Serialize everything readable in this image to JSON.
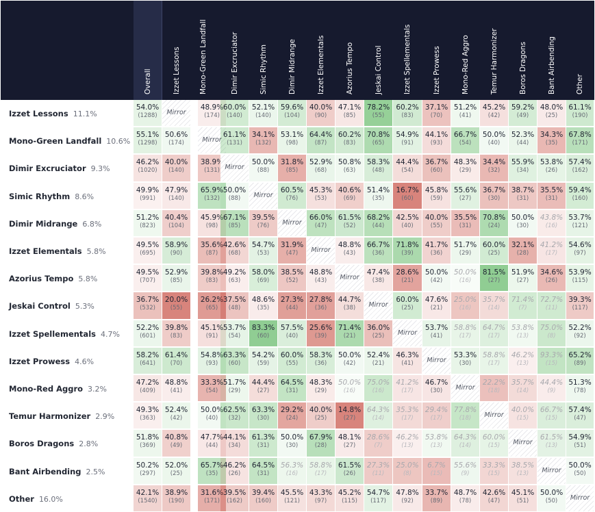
{
  "columns": [
    "Overall",
    "Izzet Lessons",
    "Mono-Green Landfall",
    "Dimir Excruciator",
    "Simic Rhythm",
    "Dimir Midrange",
    "Izzet Elementals",
    "Azorius Tempo",
    "Jeskai Control",
    "Izzet Spellementals",
    "Izzet Prowess",
    "Mono-Red Aggro",
    "Temur Harmonizer",
    "Boros Dragons",
    "Bant Airbending",
    "Other"
  ],
  "mirror_label": "Mirror",
  "colors": {
    "header_bg": "#161a2e",
    "overall_header_bg": "#262c48",
    "win": "#4caf50",
    "loss": "#c0392b"
  },
  "rows": [
    {
      "name": "Izzet Lessons",
      "share": "11.1%",
      "cells": [
        [
          "54.0%",
          "(1288)"
        ],
        null,
        [
          "48.9%",
          "(174)"
        ],
        [
          "60.0%",
          "(140)"
        ],
        [
          "52.1%",
          "(140)"
        ],
        [
          "59.6%",
          "(104)"
        ],
        [
          "40.0%",
          "(90)"
        ],
        [
          "47.1%",
          "(85)"
        ],
        [
          "78.2%",
          "(55)"
        ],
        [
          "60.2%",
          "(83)"
        ],
        [
          "37.1%",
          "(70)"
        ],
        [
          "51.2%",
          "(41)"
        ],
        [
          "45.2%",
          "(42)"
        ],
        [
          "59.2%",
          "(49)"
        ],
        [
          "48.0%",
          "(25)"
        ],
        [
          "61.1%",
          "(190)"
        ]
      ]
    },
    {
      "name": "Mono-Green Landfall",
      "share": "10.6%",
      "cells": [
        [
          "55.1%",
          "(1298)"
        ],
        [
          "50.6%",
          "(174)"
        ],
        null,
        [
          "61.1%",
          "(131)"
        ],
        [
          "34.1%",
          "(132)"
        ],
        [
          "53.1%",
          "(98)"
        ],
        [
          "64.4%",
          "(87)"
        ],
        [
          "60.2%",
          "(83)"
        ],
        [
          "70.8%",
          "(65)"
        ],
        [
          "54.9%",
          "(91)"
        ],
        [
          "44.1%",
          "(93)"
        ],
        [
          "66.7%",
          "(54)"
        ],
        [
          "50.0%",
          "(40)"
        ],
        [
          "52.3%",
          "(44)"
        ],
        [
          "34.3%",
          "(35)"
        ],
        [
          "67.8%",
          "(171)"
        ]
      ]
    },
    {
      "name": "Dimir Excruciator",
      "share": "9.3%",
      "cells": [
        [
          "46.2%",
          "(1020)"
        ],
        [
          "40.0%",
          "(140)"
        ],
        [
          "38.9%",
          "(131)"
        ],
        null,
        [
          "50.0%",
          "(88)"
        ],
        [
          "31.8%",
          "(85)"
        ],
        [
          "52.9%",
          "(68)"
        ],
        [
          "50.8%",
          "(63)"
        ],
        [
          "58.3%",
          "(48)"
        ],
        [
          "44.4%",
          "(54)"
        ],
        [
          "36.7%",
          "(60)"
        ],
        [
          "48.3%",
          "(29)"
        ],
        [
          "34.4%",
          "(32)"
        ],
        [
          "55.9%",
          "(34)"
        ],
        [
          "53.8%",
          "(26)"
        ],
        [
          "57.4%",
          "(162)"
        ]
      ]
    },
    {
      "name": "Simic Rhythm",
      "share": "8.6%",
      "cells": [
        [
          "49.9%",
          "(991)"
        ],
        [
          "47.9%",
          "(140)"
        ],
        [
          "65.9%",
          "(132)"
        ],
        [
          "50.0%",
          "(88)"
        ],
        null,
        [
          "60.5%",
          "(76)"
        ],
        [
          "45.3%",
          "(53)"
        ],
        [
          "40.6%",
          "(69)"
        ],
        [
          "51.4%",
          "(35)"
        ],
        [
          "16.7%",
          "(60)"
        ],
        [
          "45.8%",
          "(59)"
        ],
        [
          "55.6%",
          "(27)"
        ],
        [
          "36.7%",
          "(30)"
        ],
        [
          "38.7%",
          "(31)"
        ],
        [
          "35.5%",
          "(31)"
        ],
        [
          "59.4%",
          "(160)"
        ]
      ]
    },
    {
      "name": "Dimir Midrange",
      "share": "6.8%",
      "cells": [
        [
          "51.2%",
          "(823)"
        ],
        [
          "40.4%",
          "(104)"
        ],
        [
          "45.9%",
          "(98)"
        ],
        [
          "67.1%",
          "(85)"
        ],
        [
          "39.5%",
          "(76)"
        ],
        null,
        [
          "66.0%",
          "(47)"
        ],
        [
          "61.5%",
          "(52)"
        ],
        [
          "68.2%",
          "(44)"
        ],
        [
          "42.5%",
          "(40)"
        ],
        [
          "40.0%",
          "(55)"
        ],
        [
          "35.5%",
          "(31)"
        ],
        [
          "70.8%",
          "(24)"
        ],
        [
          "50.0%",
          "(30)"
        ],
        [
          "43.8%",
          "(16)"
        ],
        [
          "53.7%",
          "(121)"
        ]
      ]
    },
    {
      "name": "Izzet Elementals",
      "share": "5.8%",
      "cells": [
        [
          "49.5%",
          "(695)"
        ],
        [
          "58.9%",
          "(90)"
        ],
        [
          "35.6%",
          "(87)"
        ],
        [
          "42.6%",
          "(68)"
        ],
        [
          "54.7%",
          "(53)"
        ],
        [
          "31.9%",
          "(47)"
        ],
        null,
        [
          "48.8%",
          "(43)"
        ],
        [
          "66.7%",
          "(36)"
        ],
        [
          "71.8%",
          "(39)"
        ],
        [
          "41.7%",
          "(36)"
        ],
        [
          "51.7%",
          "(29)"
        ],
        [
          "60.0%",
          "(25)"
        ],
        [
          "32.1%",
          "(28)"
        ],
        [
          "41.2%",
          "(17)"
        ],
        [
          "54.6%",
          "(97)"
        ]
      ]
    },
    {
      "name": "Azorius Tempo",
      "share": "5.8%",
      "cells": [
        [
          "49.5%",
          "(707)"
        ],
        [
          "52.9%",
          "(85)"
        ],
        [
          "39.8%",
          "(83)"
        ],
        [
          "49.2%",
          "(63)"
        ],
        [
          "58.0%",
          "(69)"
        ],
        [
          "38.5%",
          "(52)"
        ],
        [
          "48.8%",
          "(43)"
        ],
        null,
        [
          "47.4%",
          "(38)"
        ],
        [
          "28.6%",
          "(21)"
        ],
        [
          "50.0%",
          "(42)"
        ],
        [
          "50.0%",
          "(16)"
        ],
        [
          "81.5%",
          "(27)"
        ],
        [
          "51.9%",
          "(27)"
        ],
        [
          "34.6%",
          "(26)"
        ],
        [
          "53.9%",
          "(115)"
        ]
      ]
    },
    {
      "name": "Jeskai Control",
      "share": "5.3%",
      "cells": [
        [
          "36.7%",
          "(532)"
        ],
        [
          "20.0%",
          "(55)"
        ],
        [
          "26.2%",
          "(65)"
        ],
        [
          "37.5%",
          "(48)"
        ],
        [
          "48.6%",
          "(35)"
        ],
        [
          "27.3%",
          "(44)"
        ],
        [
          "27.8%",
          "(36)"
        ],
        [
          "44.7%",
          "(38)"
        ],
        null,
        [
          "60.0%",
          "(25)"
        ],
        [
          "47.6%",
          "(21)"
        ],
        [
          "25.0%",
          "(16)"
        ],
        [
          "35.7%",
          "(14)"
        ],
        [
          "71.4%",
          "(7)"
        ],
        [
          "72.7%",
          "(11)"
        ],
        [
          "39.3%",
          "(117)"
        ]
      ]
    },
    {
      "name": "Izzet Spellementals",
      "share": "4.7%",
      "cells": [
        [
          "52.2%",
          "(601)"
        ],
        [
          "39.8%",
          "(83)"
        ],
        [
          "45.1%",
          "(91)"
        ],
        [
          "53.7%",
          "(54)"
        ],
        [
          "83.3%",
          "(60)"
        ],
        [
          "57.5%",
          "(40)"
        ],
        [
          "25.6%",
          "(39)"
        ],
        [
          "71.4%",
          "(21)"
        ],
        [
          "36.0%",
          "(25)"
        ],
        null,
        [
          "53.7%",
          "(41)"
        ],
        [
          "58.8%",
          "(17)"
        ],
        [
          "64.7%",
          "(17)"
        ],
        [
          "53.8%",
          "(13)"
        ],
        [
          "75.0%",
          "(8)"
        ],
        [
          "52.2%",
          "(92)"
        ]
      ]
    },
    {
      "name": "Izzet Prowess",
      "share": "4.6%",
      "cells": [
        [
          "58.2%",
          "(641)"
        ],
        [
          "61.4%",
          "(70)"
        ],
        [
          "54.8%",
          "(93)"
        ],
        [
          "63.3%",
          "(60)"
        ],
        [
          "54.2%",
          "(59)"
        ],
        [
          "60.0%",
          "(55)"
        ],
        [
          "58.3%",
          "(36)"
        ],
        [
          "50.0%",
          "(42)"
        ],
        [
          "52.4%",
          "(21)"
        ],
        [
          "46.3%",
          "(41)"
        ],
        null,
        [
          "53.3%",
          "(30)"
        ],
        [
          "58.8%",
          "(17)"
        ],
        [
          "46.2%",
          "(13)"
        ],
        [
          "93.3%",
          "(15)"
        ],
        [
          "65.2%",
          "(89)"
        ]
      ]
    },
    {
      "name": "Mono-Red Aggro",
      "share": "3.2%",
      "cells": [
        [
          "47.2%",
          "(409)"
        ],
        [
          "48.8%",
          "(41)"
        ],
        [
          "33.3%",
          "(54)"
        ],
        [
          "51.7%",
          "(29)"
        ],
        [
          "44.4%",
          "(27)"
        ],
        [
          "64.5%",
          "(31)"
        ],
        [
          "48.3%",
          "(29)"
        ],
        [
          "50.0%",
          "(16)"
        ],
        [
          "75.0%",
          "(16)"
        ],
        [
          "41.2%",
          "(17)"
        ],
        [
          "46.7%",
          "(30)"
        ],
        null,
        [
          "22.2%",
          "(18)"
        ],
        [
          "35.7%",
          "(14)"
        ],
        [
          "44.4%",
          "(9)"
        ],
        [
          "51.3%",
          "(78)"
        ]
      ]
    },
    {
      "name": "Temur Harmonizer",
      "share": "2.9%",
      "cells": [
        [
          "49.3%",
          "(363)"
        ],
        [
          "52.4%",
          "(42)"
        ],
        [
          "50.0%",
          "(40)"
        ],
        [
          "62.5%",
          "(32)"
        ],
        [
          "63.3%",
          "(30)"
        ],
        [
          "29.2%",
          "(24)"
        ],
        [
          "40.0%",
          "(25)"
        ],
        [
          "14.8%",
          "(27)"
        ],
        [
          "64.3%",
          "(14)"
        ],
        [
          "35.3%",
          "(17)"
        ],
        [
          "29.4%",
          "(17)"
        ],
        [
          "77.8%",
          "(18)"
        ],
        null,
        [
          "40.0%",
          "(15)"
        ],
        [
          "66.7%",
          "(15)"
        ],
        [
          "57.4%",
          "(47)"
        ]
      ]
    },
    {
      "name": "Boros Dragons",
      "share": "2.8%",
      "cells": [
        [
          "51.8%",
          "(369)"
        ],
        [
          "40.8%",
          "(49)"
        ],
        [
          "47.7%",
          "(44)"
        ],
        [
          "44.1%",
          "(34)"
        ],
        [
          "61.3%",
          "(31)"
        ],
        [
          "50.0%",
          "(30)"
        ],
        [
          "67.9%",
          "(28)"
        ],
        [
          "48.1%",
          "(27)"
        ],
        [
          "28.6%",
          "(7)"
        ],
        [
          "46.2%",
          "(13)"
        ],
        [
          "53.8%",
          "(13)"
        ],
        [
          "64.3%",
          "(14)"
        ],
        [
          "60.0%",
          "(15)"
        ],
        null,
        [
          "61.5%",
          "(13)"
        ],
        [
          "54.9%",
          "(51)"
        ]
      ]
    },
    {
      "name": "Bant Airbending",
      "share": "2.5%",
      "cells": [
        [
          "50.2%",
          "(297)"
        ],
        [
          "52.0%",
          "(25)"
        ],
        [
          "65.7%",
          "(35)"
        ],
        [
          "46.2%",
          "(26)"
        ],
        [
          "64.5%",
          "(31)"
        ],
        [
          "56.3%",
          "(16)"
        ],
        [
          "58.8%",
          "(17)"
        ],
        [
          "61.5%",
          "(26)"
        ],
        [
          "27.3%",
          "(11)"
        ],
        [
          "25.0%",
          "(8)"
        ],
        [
          "6.7%",
          "(15)"
        ],
        [
          "55.6%",
          "(9)"
        ],
        [
          "33.3%",
          "(15)"
        ],
        [
          "38.5%",
          "(13)"
        ],
        null,
        [
          "50.0%",
          "(50)"
        ]
      ]
    },
    {
      "name": "Other",
      "share": "16.0%",
      "cells": [
        [
          "42.1%",
          "(1540)"
        ],
        [
          "38.9%",
          "(190)"
        ],
        [
          "31.6%",
          "(171)"
        ],
        [
          "39.5%",
          "(162)"
        ],
        [
          "39.4%",
          "(160)"
        ],
        [
          "45.5%",
          "(121)"
        ],
        [
          "43.3%",
          "(97)"
        ],
        [
          "45.2%",
          "(115)"
        ],
        [
          "54.7%",
          "(117)"
        ],
        [
          "47.8%",
          "(92)"
        ],
        [
          "33.7%",
          "(89)"
        ],
        [
          "48.7%",
          "(78)"
        ],
        [
          "42.6%",
          "(47)"
        ],
        [
          "45.1%",
          "(51)"
        ],
        [
          "50.0%",
          "(50)"
        ],
        null
      ]
    }
  ],
  "chart_data": {
    "type": "heatmap",
    "x": [
      "Overall",
      "Izzet Lessons",
      "Mono-Green Landfall",
      "Dimir Excruciator",
      "Simic Rhythm",
      "Dimir Midrange",
      "Izzet Elementals",
      "Azorius Tempo",
      "Jeskai Control",
      "Izzet Spellementals",
      "Izzet Prowess",
      "Mono-Red Aggro",
      "Temur Harmonizer",
      "Boros Dragons",
      "Bant Airbending",
      "Other"
    ],
    "y": [
      "Izzet Lessons",
      "Mono-Green Landfall",
      "Dimir Excruciator",
      "Simic Rhythm",
      "Dimir Midrange",
      "Izzet Elementals",
      "Azorius Tempo",
      "Jeskai Control",
      "Izzet Spellementals",
      "Izzet Prowess",
      "Mono-Red Aggro",
      "Temur Harmonizer",
      "Boros Dragons",
      "Bant Airbending",
      "Other"
    ],
    "y_share": [
      "11.1%",
      "10.6%",
      "9.3%",
      "8.6%",
      "6.8%",
      "5.8%",
      "5.8%",
      "5.3%",
      "4.7%",
      "4.6%",
      "3.2%",
      "2.9%",
      "2.8%",
      "2.5%",
      "16.0%"
    ],
    "value_unit": "win rate % (sample size)"
  }
}
